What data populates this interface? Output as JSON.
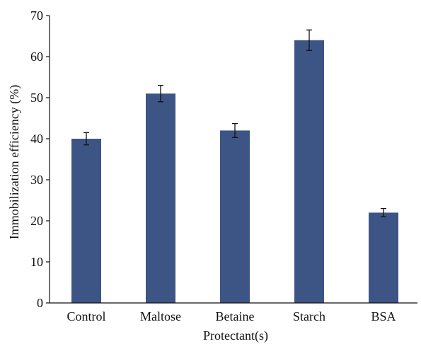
{
  "chart_data": {
    "type": "bar",
    "title": "",
    "xlabel": "Protectant(s)",
    "ylabel": "Immobilization efficiency (%)",
    "categories": [
      "Control",
      "Maltose",
      "Betaine",
      "Starch",
      "BSA"
    ],
    "values": [
      40,
      51,
      42,
      64,
      22
    ],
    "errors": [
      1.5,
      2,
      1.7,
      2.5,
      1
    ],
    "ylim": [
      0,
      70
    ],
    "yticks": [
      "0",
      "10",
      "20",
      "30",
      "40",
      "50",
      "60",
      "70"
    ],
    "grid": false,
    "bar_color": "#3d5585",
    "axis_color": "#111111",
    "error_color": "#111111"
  }
}
